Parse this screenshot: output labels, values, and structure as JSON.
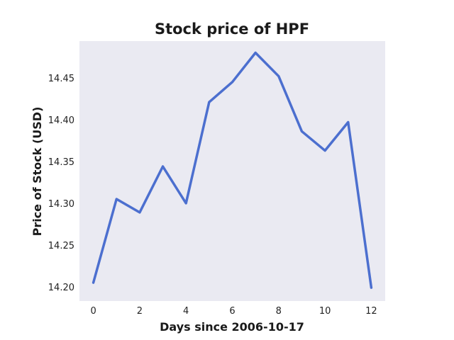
{
  "chart_data": {
    "type": "line",
    "title": "Stock price of HPF",
    "xlabel": "Days since 2006-10-17",
    "ylabel": "Price of Stock (USD)",
    "x": [
      0,
      1,
      2,
      3,
      4,
      5,
      6,
      7,
      8,
      9,
      10,
      11,
      12
    ],
    "series": [
      {
        "values": [
          14.205,
          14.305,
          14.289,
          14.344,
          14.3,
          14.421,
          14.445,
          14.48,
          14.452,
          14.386,
          14.363,
          14.397,
          14.199
        ]
      }
    ],
    "xlim": [
      -0.6,
      12.6
    ],
    "ylim": [
      14.183,
      14.494
    ],
    "xticks": [
      0,
      2,
      4,
      6,
      8,
      10,
      12
    ],
    "xtick_labels": [
      "0",
      "2",
      "4",
      "6",
      "8",
      "10",
      "12"
    ],
    "yticks": [
      14.2,
      14.25,
      14.3,
      14.35,
      14.4,
      14.45
    ],
    "ytick_labels": [
      "14.20",
      "14.25",
      "14.30",
      "14.35",
      "14.40",
      "14.45"
    ],
    "grid": false,
    "colors": {
      "line": "#4C6FCF",
      "plot_background": "#EAEAF2"
    }
  }
}
